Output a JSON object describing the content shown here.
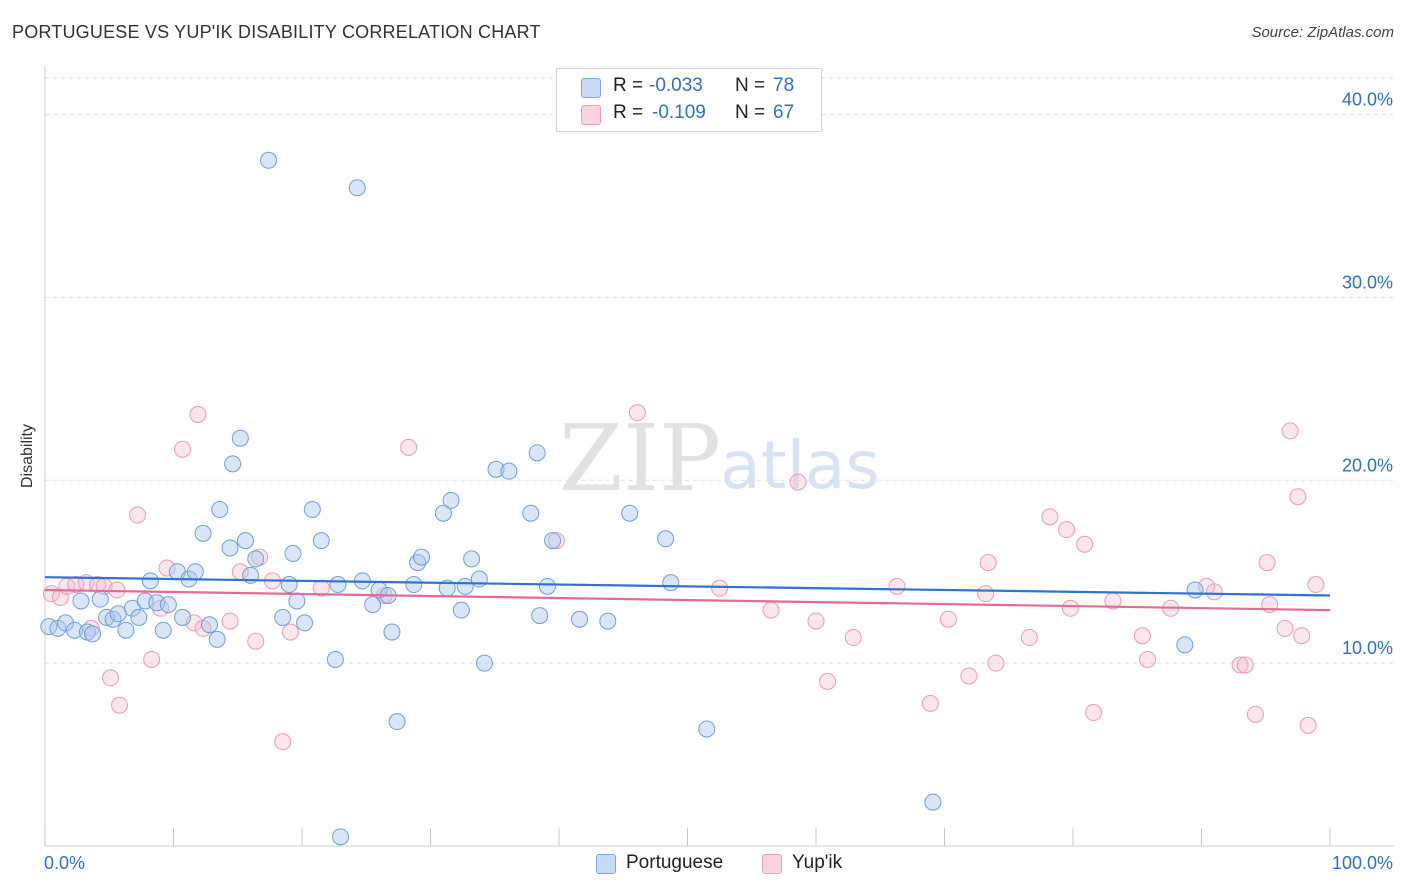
{
  "title": "PORTUGUESE VS YUP'IK DISABILITY CORRELATION CHART",
  "source": "Source: ZipAtlas.com",
  "watermark": {
    "zip": "ZIP",
    "atlas": "atlas"
  },
  "legend_stats": [
    {
      "r_label": "R =",
      "r_value": "-0.033",
      "n_label": "N =",
      "n_value": "78",
      "color": "#a9c8f0"
    },
    {
      "r_label": "R =",
      "r_value": "-0.109",
      "n_label": "N =",
      "n_value": "67",
      "color": "#f5b7cb"
    }
  ],
  "bottom_legend": [
    {
      "label": "Portuguese",
      "color": "#a9c8f0"
    },
    {
      "label": "Yup'ik",
      "color": "#f5b7cb"
    }
  ],
  "chart_data": {
    "type": "scatter",
    "title": "PORTUGUESE VS YUP'IK DISABILITY CORRELATION CHART",
    "xlabel": "",
    "ylabel": "Disability",
    "xlim": [
      0,
      100
    ],
    "ylim": [
      0,
      42
    ],
    "x_tick_labels": [
      "0.0%",
      "100.0%"
    ],
    "y_ticks": [
      10,
      20,
      30,
      40
    ],
    "y_tick_labels": [
      "10.0%",
      "20.0%",
      "30.0%",
      "40.0%"
    ],
    "grid": true,
    "legend_position": "top-center",
    "colors": {
      "portuguese": "#5b93dc",
      "yupik": "#ec7aa0",
      "axis_text": "#2f6fc6"
    },
    "series": [
      {
        "name": "Portuguese",
        "color": "#5b93dc",
        "trend": {
          "x": [
            0,
            100
          ],
          "y": [
            14.7,
            13.7
          ]
        },
        "points": [
          [
            0.3,
            12.0
          ],
          [
            1.0,
            11.9
          ],
          [
            1.6,
            12.2
          ],
          [
            2.3,
            11.8
          ],
          [
            2.8,
            13.4
          ],
          [
            3.3,
            11.7
          ],
          [
            3.7,
            11.6
          ],
          [
            4.3,
            13.5
          ],
          [
            4.8,
            12.5
          ],
          [
            5.3,
            12.4
          ],
          [
            5.7,
            12.7
          ],
          [
            6.3,
            11.8
          ],
          [
            6.8,
            13.0
          ],
          [
            7.3,
            12.5
          ],
          [
            7.8,
            13.4
          ],
          [
            8.2,
            14.5
          ],
          [
            8.7,
            13.3
          ],
          [
            9.2,
            11.8
          ],
          [
            9.6,
            13.2
          ],
          [
            10.3,
            15.0
          ],
          [
            10.7,
            12.5
          ],
          [
            11.2,
            14.6
          ],
          [
            11.7,
            15.0
          ],
          [
            12.3,
            17.1
          ],
          [
            12.8,
            12.1
          ],
          [
            13.4,
            11.3
          ],
          [
            13.6,
            18.4
          ],
          [
            14.4,
            16.3
          ],
          [
            14.6,
            20.9
          ],
          [
            15.2,
            22.3
          ],
          [
            15.6,
            16.7
          ],
          [
            16.0,
            14.8
          ],
          [
            16.4,
            15.7
          ],
          [
            17.4,
            37.5
          ],
          [
            18.5,
            12.5
          ],
          [
            19.0,
            14.3
          ],
          [
            19.3,
            16.0
          ],
          [
            19.6,
            13.4
          ],
          [
            20.2,
            12.2
          ],
          [
            20.8,
            18.4
          ],
          [
            21.5,
            16.7
          ],
          [
            22.6,
            10.2
          ],
          [
            22.8,
            14.3
          ],
          [
            23.0,
            0.5
          ],
          [
            24.3,
            36.0
          ],
          [
            24.7,
            14.5
          ],
          [
            25.5,
            13.2
          ],
          [
            26.0,
            14.0
          ],
          [
            26.7,
            13.7
          ],
          [
            27.0,
            11.7
          ],
          [
            27.4,
            6.8
          ],
          [
            28.7,
            14.3
          ],
          [
            29.0,
            15.5
          ],
          [
            29.3,
            15.8
          ],
          [
            31.0,
            18.2
          ],
          [
            31.3,
            14.1
          ],
          [
            31.6,
            18.9
          ],
          [
            32.4,
            12.9
          ],
          [
            32.7,
            14.2
          ],
          [
            33.2,
            15.7
          ],
          [
            33.8,
            14.6
          ],
          [
            34.2,
            10.0
          ],
          [
            35.1,
            20.6
          ],
          [
            36.1,
            20.5
          ],
          [
            37.8,
            18.2
          ],
          [
            38.3,
            21.5
          ],
          [
            38.5,
            12.6
          ],
          [
            39.1,
            14.2
          ],
          [
            39.5,
            16.7
          ],
          [
            41.6,
            12.4
          ],
          [
            43.8,
            12.3
          ],
          [
            45.5,
            18.2
          ],
          [
            48.3,
            16.8
          ],
          [
            48.7,
            14.4
          ],
          [
            51.5,
            6.4
          ],
          [
            69.1,
            2.4
          ],
          [
            88.7,
            11.0
          ],
          [
            89.5,
            14.0
          ]
        ]
      },
      {
        "name": "Yup'ik",
        "color": "#ec7aa0",
        "trend": {
          "x": [
            0,
            100
          ],
          "y": [
            14.0,
            12.9
          ]
        },
        "points": [
          [
            0.5,
            13.8
          ],
          [
            1.2,
            13.6
          ],
          [
            1.7,
            14.2
          ],
          [
            2.4,
            14.3
          ],
          [
            3.2,
            14.4
          ],
          [
            3.6,
            11.9
          ],
          [
            4.1,
            14.3
          ],
          [
            4.6,
            14.2
          ],
          [
            5.1,
            9.2
          ],
          [
            5.6,
            14.0
          ],
          [
            5.8,
            7.7
          ],
          [
            7.2,
            18.1
          ],
          [
            8.3,
            10.2
          ],
          [
            9.0,
            13.0
          ],
          [
            9.5,
            15.2
          ],
          [
            10.7,
            21.7
          ],
          [
            11.6,
            12.2
          ],
          [
            11.9,
            23.6
          ],
          [
            14.4,
            12.3
          ],
          [
            15.2,
            15.0
          ],
          [
            16.7,
            15.8
          ],
          [
            17.7,
            14.5
          ],
          [
            18.5,
            5.7
          ],
          [
            19.1,
            11.7
          ],
          [
            26.4,
            13.7
          ],
          [
            28.3,
            21.8
          ],
          [
            39.8,
            16.7
          ],
          [
            46.1,
            23.7
          ],
          [
            52.5,
            14.1
          ],
          [
            56.5,
            12.9
          ],
          [
            58.6,
            19.9
          ],
          [
            60.0,
            12.3
          ],
          [
            60.9,
            9.0
          ],
          [
            62.9,
            11.4
          ],
          [
            66.3,
            14.2
          ],
          [
            68.9,
            7.8
          ],
          [
            70.3,
            12.4
          ],
          [
            71.9,
            9.3
          ],
          [
            73.2,
            13.8
          ],
          [
            73.4,
            15.5
          ],
          [
            74.0,
            10.0
          ],
          [
            76.6,
            11.4
          ],
          [
            78.2,
            18.0
          ],
          [
            79.5,
            17.3
          ],
          [
            79.8,
            13.0
          ],
          [
            80.9,
            16.5
          ],
          [
            81.6,
            7.3
          ],
          [
            83.1,
            13.4
          ],
          [
            85.4,
            11.5
          ],
          [
            85.8,
            10.2
          ],
          [
            87.6,
            13.0
          ],
          [
            90.4,
            14.2
          ],
          [
            91.0,
            13.9
          ],
          [
            93.0,
            9.9
          ],
          [
            93.4,
            9.9
          ],
          [
            94.2,
            7.2
          ],
          [
            95.1,
            15.5
          ],
          [
            95.3,
            13.2
          ],
          [
            96.5,
            11.9
          ],
          [
            96.9,
            22.7
          ],
          [
            97.5,
            19.1
          ],
          [
            97.8,
            11.5
          ],
          [
            98.3,
            6.6
          ],
          [
            98.9,
            14.3
          ],
          [
            12.3,
            11.9
          ],
          [
            21.5,
            14.1
          ],
          [
            16.4,
            11.2
          ]
        ]
      }
    ]
  }
}
